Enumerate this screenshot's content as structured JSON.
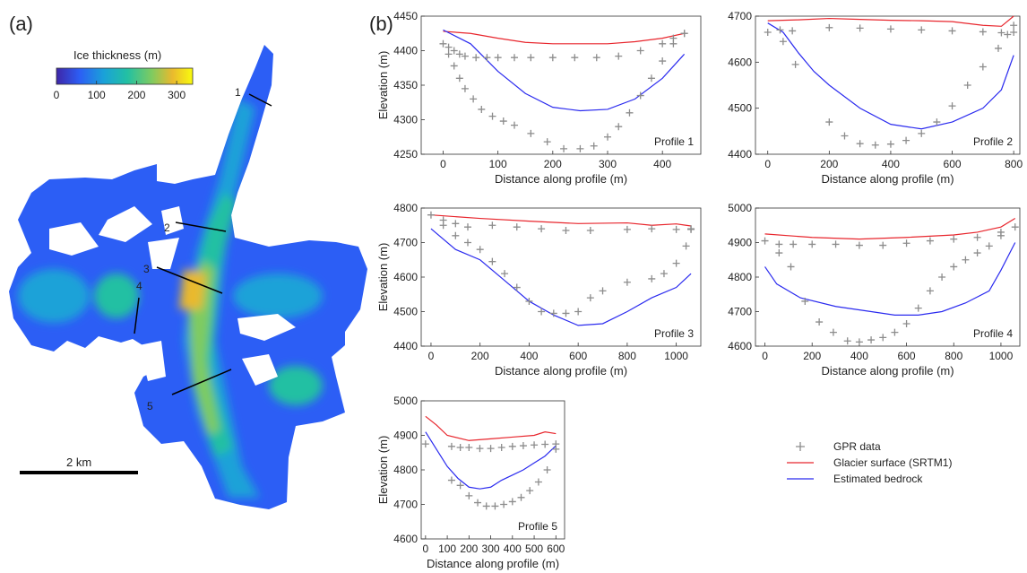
{
  "panel_a": {
    "label": "(a)",
    "colorbar": {
      "title": "Ice thickness (m)",
      "ticks": [
        "0",
        "100",
        "200",
        "300"
      ],
      "max_value": 340,
      "colors": [
        "#3e26a8",
        "#2c5ef5",
        "#1aa2d8",
        "#22c0a3",
        "#7fcb60",
        "#e9b92e",
        "#f9fb0e"
      ]
    },
    "profile_labels": [
      "1",
      "2",
      "3",
      "4",
      "5"
    ],
    "scalebar_label": "2 km"
  },
  "panel_b_label": "(b)",
  "legend": {
    "items": [
      {
        "label": "GPR data",
        "marker": "plus",
        "color": "#8c8c8c"
      },
      {
        "label": "Glacier surface (SRTM1)",
        "marker": "line",
        "color": "#e8262d"
      },
      {
        "label": "Estimated bedrock",
        "marker": "line",
        "color": "#2b2bef"
      }
    ]
  },
  "chart_data": [
    {
      "type": "line",
      "title": "Profile 1",
      "xlabel": "Distance along profile (m)",
      "ylabel": "Elevation (m)",
      "xlim": [
        -40,
        470
      ],
      "ylim": [
        4250,
        4450
      ],
      "xticks": [
        0,
        100,
        200,
        300,
        400
      ],
      "yticks": [
        4250,
        4300,
        4350,
        4400,
        4450
      ],
      "series": [
        {
          "name": "Glacier surface (SRTM1)",
          "x": [
            0,
            50,
            100,
            150,
            200,
            250,
            300,
            350,
            400,
            440
          ],
          "y": [
            4428,
            4425,
            4418,
            4412,
            4410,
            4410,
            4410,
            4413,
            4418,
            4425
          ]
        },
        {
          "name": "Estimated bedrock",
          "x": [
            0,
            50,
            100,
            150,
            200,
            250,
            300,
            350,
            400,
            440
          ],
          "y": [
            4430,
            4410,
            4370,
            4338,
            4318,
            4313,
            4315,
            4330,
            4360,
            4395
          ]
        },
        {
          "name": "GPR data",
          "x": [
            0,
            10,
            20,
            30,
            40,
            60,
            80,
            100,
            130,
            160,
            200,
            240,
            280,
            320,
            360,
            400,
            420,
            440
          ],
          "y": [
            4410,
            4405,
            4400,
            4395,
            4392,
            4390,
            4390,
            4390,
            4390,
            4390,
            4390,
            4390,
            4390,
            4392,
            4400,
            4410,
            4418,
            4425
          ]
        },
        {
          "name": "GPR data",
          "x": [
            10,
            20,
            30,
            40,
            55,
            70,
            90,
            110,
            130,
            160,
            190,
            220,
            250,
            275,
            300,
            320,
            340,
            360,
            380,
            400,
            420,
            440
          ],
          "y": [
            4395,
            4378,
            4360,
            4345,
            4330,
            4315,
            4305,
            4298,
            4292,
            4280,
            4268,
            4258,
            4258,
            4262,
            4275,
            4290,
            4310,
            4335,
            4360,
            4385,
            4410,
            4425
          ]
        }
      ]
    },
    {
      "type": "line",
      "title": "Profile 2",
      "xlabel": "Distance along profile (m)",
      "ylabel": "",
      "xlim": [
        -40,
        820
      ],
      "ylim": [
        4400,
        4700
      ],
      "xticks": [
        0,
        200,
        400,
        600,
        800
      ],
      "yticks": [
        4400,
        4500,
        4600,
        4700
      ],
      "series": [
        {
          "name": "Glacier surface (SRTM1)",
          "x": [
            0,
            100,
            200,
            300,
            400,
            500,
            600,
            700,
            760,
            800
          ],
          "y": [
            4690,
            4692,
            4695,
            4693,
            4691,
            4690,
            4688,
            4680,
            4678,
            4700
          ]
        },
        {
          "name": "Estimated bedrock",
          "x": [
            0,
            50,
            100,
            150,
            200,
            300,
            400,
            500,
            600,
            700,
            760,
            800
          ],
          "y": [
            4685,
            4665,
            4620,
            4580,
            4550,
            4500,
            4465,
            4455,
            4470,
            4500,
            4540,
            4615
          ]
        },
        {
          "name": "GPR data",
          "x": [
            0,
            40,
            80,
            200,
            300,
            400,
            500,
            600,
            700,
            760,
            800
          ],
          "y": [
            4665,
            4670,
            4668,
            4675,
            4674,
            4672,
            4670,
            4668,
            4666,
            4664,
            4665
          ]
        },
        {
          "name": "GPR data",
          "x": [
            50,
            90,
            200,
            250,
            300,
            350,
            400,
            450,
            500,
            550,
            600,
            650,
            700,
            750,
            780,
            800
          ],
          "y": [
            4645,
            4595,
            4470,
            4440,
            4423,
            4420,
            4422,
            4430,
            4445,
            4470,
            4505,
            4550,
            4590,
            4630,
            4660,
            4680
          ]
        }
      ]
    },
    {
      "type": "line",
      "title": "Profile 3",
      "xlabel": "Distance along profile (m)",
      "ylabel": "Elevation (m)",
      "xlim": [
        -40,
        1100
      ],
      "ylim": [
        4400,
        4800
      ],
      "xticks": [
        0,
        200,
        400,
        600,
        800,
        1000
      ],
      "yticks": [
        4400,
        4500,
        4600,
        4700,
        4800
      ],
      "series": [
        {
          "name": "Glacier surface (SRTM1)",
          "x": [
            0,
            200,
            400,
            600,
            800,
            900,
            1000,
            1060
          ],
          "y": [
            4780,
            4770,
            4762,
            4755,
            4757,
            4750,
            4754,
            4748
          ]
        },
        {
          "name": "Estimated bedrock",
          "x": [
            0,
            100,
            200,
            300,
            400,
            500,
            600,
            700,
            800,
            900,
            1000,
            1060
          ],
          "y": [
            4740,
            4680,
            4650,
            4590,
            4530,
            4490,
            4460,
            4465,
            4500,
            4540,
            4570,
            4610
          ]
        },
        {
          "name": "GPR data",
          "x": [
            0,
            50,
            100,
            150,
            250,
            350,
            450,
            550,
            650,
            800,
            900,
            1000,
            1060
          ],
          "y": [
            4780,
            4765,
            4755,
            4745,
            4750,
            4745,
            4740,
            4735,
            4735,
            4738,
            4740,
            4738,
            4738
          ]
        },
        {
          "name": "GPR data",
          "x": [
            50,
            100,
            150,
            200,
            250,
            300,
            350,
            400,
            450,
            500,
            550,
            600,
            650,
            700,
            800,
            900,
            950,
            1000,
            1040,
            1060
          ],
          "y": [
            4750,
            4720,
            4700,
            4680,
            4645,
            4610,
            4570,
            4530,
            4500,
            4495,
            4495,
            4500,
            4540,
            4560,
            4585,
            4595,
            4610,
            4640,
            4690,
            4740
          ]
        }
      ]
    },
    {
      "type": "line",
      "title": "Profile 4",
      "xlabel": "Distance along profile (m)",
      "ylabel": "",
      "xlim": [
        -40,
        1080
      ],
      "ylim": [
        4600,
        5000
      ],
      "xticks": [
        0,
        200,
        400,
        600,
        800,
        1000
      ],
      "yticks": [
        4600,
        4700,
        4800,
        4900,
        5000
      ],
      "series": [
        {
          "name": "Glacier surface (SRTM1)",
          "x": [
            0,
            200,
            400,
            600,
            800,
            900,
            1000,
            1060
          ],
          "y": [
            4925,
            4915,
            4910,
            4915,
            4922,
            4930,
            4945,
            4970
          ]
        },
        {
          "name": "Estimated bedrock",
          "x": [
            0,
            50,
            150,
            300,
            450,
            550,
            650,
            750,
            850,
            950,
            1000,
            1060
          ],
          "y": [
            4830,
            4780,
            4740,
            4715,
            4700,
            4690,
            4690,
            4700,
            4725,
            4760,
            4820,
            4900
          ]
        },
        {
          "name": "GPR data",
          "x": [
            0,
            60,
            120,
            200,
            300,
            400,
            500,
            600,
            700,
            800,
            900,
            1000
          ],
          "y": [
            4905,
            4895,
            4895,
            4895,
            4895,
            4892,
            4892,
            4898,
            4905,
            4910,
            4915,
            4930
          ]
        },
        {
          "name": "GPR data",
          "x": [
            60,
            110,
            170,
            230,
            290,
            350,
            400,
            450,
            500,
            550,
            600,
            650,
            700,
            750,
            800,
            850,
            900,
            950,
            1000,
            1060
          ],
          "y": [
            4870,
            4830,
            4730,
            4670,
            4640,
            4615,
            4612,
            4618,
            4625,
            4640,
            4665,
            4710,
            4760,
            4800,
            4830,
            4850,
            4870,
            4890,
            4920,
            4945
          ]
        }
      ]
    },
    {
      "type": "line",
      "title": "Profile 5",
      "xlabel": "Distance along profile (m)",
      "ylabel": "Elevation (m)",
      "xlim": [
        -20,
        640
      ],
      "ylim": [
        4600,
        5000
      ],
      "xticks": [
        0,
        100,
        200,
        300,
        400,
        500,
        600
      ],
      "yticks": [
        4600,
        4700,
        4800,
        4900,
        5000
      ],
      "series": [
        {
          "name": "Glacier surface (SRTM1)",
          "x": [
            0,
            50,
            100,
            200,
            300,
            400,
            500,
            550,
            600
          ],
          "y": [
            4955,
            4930,
            4900,
            4885,
            4890,
            4895,
            4900,
            4910,
            4905
          ]
        },
        {
          "name": "Estimated bedrock",
          "x": [
            0,
            50,
            100,
            150,
            200,
            250,
            300,
            350,
            400,
            450,
            500,
            550,
            600
          ],
          "y": [
            4910,
            4860,
            4810,
            4775,
            4750,
            4745,
            4750,
            4770,
            4785,
            4800,
            4820,
            4840,
            4870
          ]
        },
        {
          "name": "GPR data",
          "x": [
            0,
            120,
            160,
            200,
            250,
            300,
            350,
            400,
            450,
            500,
            550,
            600
          ],
          "y": [
            4875,
            4868,
            4865,
            4865,
            4862,
            4862,
            4865,
            4868,
            4870,
            4872,
            4874,
            4875
          ]
        },
        {
          "name": "GPR data",
          "x": [
            120,
            160,
            200,
            240,
            280,
            320,
            360,
            400,
            440,
            480,
            520,
            560,
            600
          ],
          "y": [
            4770,
            4755,
            4725,
            4705,
            4695,
            4695,
            4700,
            4708,
            4720,
            4740,
            4765,
            4800,
            4860
          ]
        }
      ]
    }
  ]
}
